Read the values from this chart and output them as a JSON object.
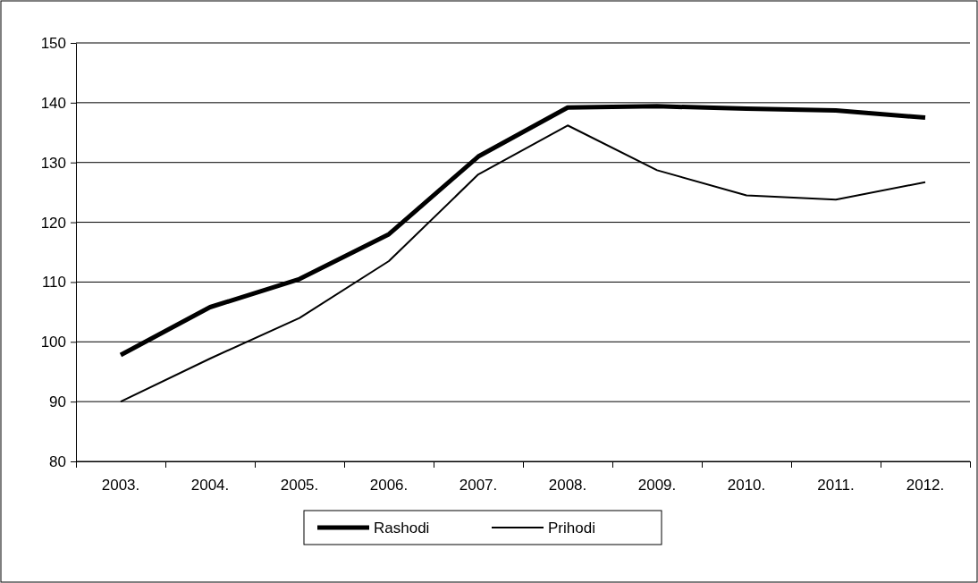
{
  "chart_data": {
    "type": "line",
    "categories": [
      "2003.",
      "2004.",
      "2005.",
      "2006.",
      "2007.",
      "2008.",
      "2009.",
      "2010.",
      "2011.",
      "2012."
    ],
    "series": [
      {
        "name": "Rashodi",
        "color": "#000000",
        "values": [
          97.8,
          105.8,
          110.5,
          118,
          131,
          139.2,
          139.4,
          139,
          138.7,
          137.5
        ]
      },
      {
        "name": "Prihodi",
        "color": "#000000",
        "values": [
          90,
          97.2,
          104,
          113.5,
          128,
          136.2,
          128.7,
          124.5,
          123.8,
          126.7
        ]
      }
    ],
    "ylim": [
      80,
      150
    ],
    "yticks": [
      80,
      90,
      100,
      110,
      120,
      130,
      140,
      150
    ],
    "grid": "y",
    "legend": "bottom",
    "marker": "none",
    "line_style": "solid"
  }
}
